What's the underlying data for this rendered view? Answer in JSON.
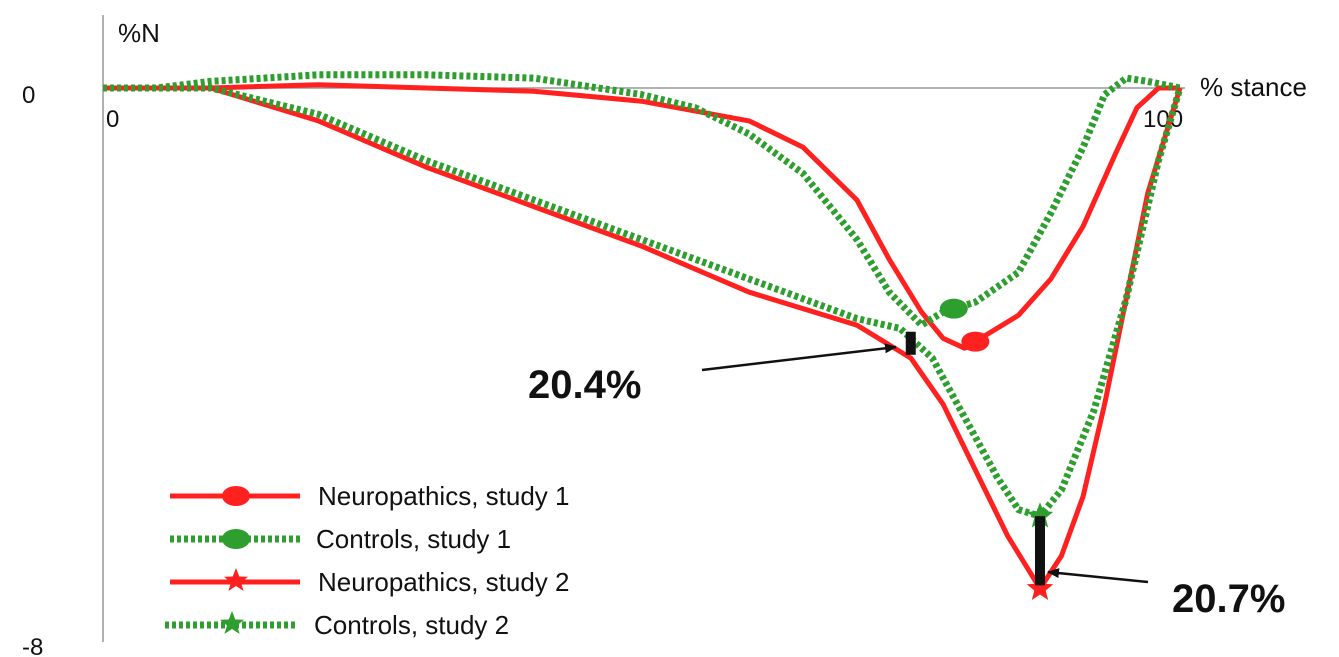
{
  "chart_data": {
    "type": "line",
    "xlabel": "% stance",
    "ylabel": "%N",
    "xlim": [
      0,
      100
    ],
    "ylim": [
      -8,
      0
    ],
    "x_ticks": [
      "0",
      "100"
    ],
    "y_ticks": [
      "0",
      "-8"
    ],
    "grid": false,
    "legend": "bottom-left",
    "series": [
      {
        "name": "Neuropathics, study 1",
        "color": "#ff2020",
        "style": "solid",
        "marker": "circle",
        "marker_at": 81,
        "points": [
          [
            0,
            0
          ],
          [
            10,
            0
          ],
          [
            20,
            0.05
          ],
          [
            30,
            0
          ],
          [
            40,
            -0.05
          ],
          [
            50,
            -0.2
          ],
          [
            60,
            -0.5
          ],
          [
            65,
            -0.9
          ],
          [
            70,
            -1.7
          ],
          [
            73,
            -2.6
          ],
          [
            76,
            -3.4
          ],
          [
            78,
            -3.8
          ],
          [
            80,
            -3.95
          ],
          [
            82,
            -3.75
          ],
          [
            85,
            -3.45
          ],
          [
            88,
            -2.9
          ],
          [
            91,
            -2.1
          ],
          [
            94,
            -1.0
          ],
          [
            96,
            -0.3
          ],
          [
            98,
            0
          ],
          [
            100,
            0
          ]
        ]
      },
      {
        "name": "Controls, study 1",
        "color": "#2e9e2e",
        "style": "dashed",
        "marker": "circle",
        "marker_at": 79,
        "points": [
          [
            0,
            0
          ],
          [
            5,
            0
          ],
          [
            10,
            0.1
          ],
          [
            20,
            0.2
          ],
          [
            30,
            0.2
          ],
          [
            40,
            0.15
          ],
          [
            50,
            -0.1
          ],
          [
            55,
            -0.3
          ],
          [
            60,
            -0.7
          ],
          [
            65,
            -1.3
          ],
          [
            70,
            -2.3
          ],
          [
            73,
            -3.1
          ],
          [
            76,
            -3.6
          ],
          [
            78,
            -3.4
          ],
          [
            81,
            -3.25
          ],
          [
            85,
            -2.8
          ],
          [
            88,
            -1.9
          ],
          [
            91,
            -0.9
          ],
          [
            93,
            -0.1
          ],
          [
            95,
            0.15
          ],
          [
            97,
            0.1
          ],
          [
            100,
            0
          ]
        ]
      },
      {
        "name": "Neuropathics, study 2",
        "color": "#ff2020",
        "style": "solid",
        "marker": "star",
        "marker_at": 87,
        "points": [
          [
            0,
            0
          ],
          [
            10,
            0
          ],
          [
            20,
            -0.5
          ],
          [
            30,
            -1.2
          ],
          [
            40,
            -1.8
          ],
          [
            50,
            -2.4
          ],
          [
            60,
            -3.1
          ],
          [
            70,
            -3.6
          ],
          [
            75,
            -4.1
          ],
          [
            78,
            -4.8
          ],
          [
            81,
            -5.8
          ],
          [
            84,
            -6.8
          ],
          [
            87,
            -7.6
          ],
          [
            89,
            -7.1
          ],
          [
            91,
            -6.2
          ],
          [
            93,
            -4.8
          ],
          [
            95,
            -3.2
          ],
          [
            97,
            -1.6
          ],
          [
            100,
            0
          ]
        ]
      },
      {
        "name": "Controls, study 2",
        "color": "#2e9e2e",
        "style": "dashed",
        "marker": "star",
        "marker_at": 87,
        "points": [
          [
            0,
            0
          ],
          [
            10,
            0
          ],
          [
            20,
            -0.4
          ],
          [
            30,
            -1.1
          ],
          [
            40,
            -1.7
          ],
          [
            50,
            -2.3
          ],
          [
            60,
            -2.9
          ],
          [
            70,
            -3.5
          ],
          [
            74,
            -3.65
          ],
          [
            77,
            -4.1
          ],
          [
            80,
            -5.0
          ],
          [
            83,
            -5.9
          ],
          [
            85,
            -6.4
          ],
          [
            87,
            -6.5
          ],
          [
            89,
            -6.1
          ],
          [
            92,
            -4.9
          ],
          [
            95,
            -3.2
          ],
          [
            98,
            -1.1
          ],
          [
            100,
            0
          ]
        ]
      }
    ],
    "annotations": [
      {
        "text": "20.4%",
        "at_x": 75,
        "y_from": -3.7,
        "y_to": -4.05
      },
      {
        "text": "20.7%",
        "at_x": 87,
        "y_from": -6.5,
        "y_to": -7.55
      }
    ]
  }
}
